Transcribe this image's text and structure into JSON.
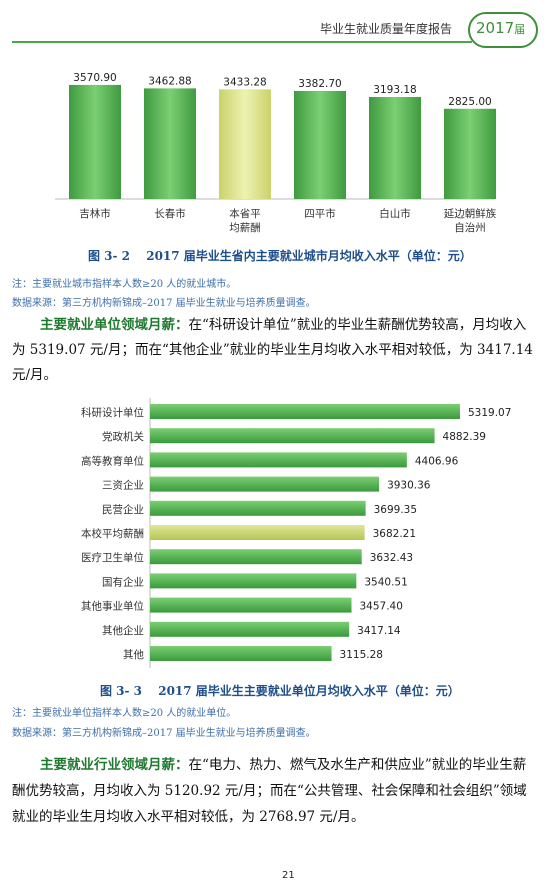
{
  "header": {
    "title": "毕业生就业质量年度报告",
    "year": "2017",
    "suffix": "届"
  },
  "chart1": {
    "caption": "图 3- 2 　2017 届毕业生省内主要就业城市月均收入水平（单位：元）",
    "note": "注：主要就业城市指样本人数≥20 人的就业城市。",
    "source": "数据来源：第三方机构新锦成–2017 届毕业生就业与培养质量调查。"
  },
  "para1": {
    "lead": "主要就业单位领域月薪：",
    "text": "在“科研设计单位”就业的毕业生薪酬优势较高，月均收入为 5319.07 元/月；而在“其他企业”就业的毕业生月均收入水平相对较低，为 3417.14 元/月。"
  },
  "chart2": {
    "caption": "图 3- 3 　2017 届毕业生主要就业单位月均收入水平（单位：元）",
    "note": "注：主要就业单位指样本人数≥20 人的就业单位。",
    "source": "数据来源：第三方机构新锦成–2017 届毕业生就业与培养质量调查。"
  },
  "para2": {
    "lead": "主要就业行业领域月薪：",
    "text": "在“电力、热力、燃气及水生产和供应业”就业的毕业生薪酬优势较高，月均收入为 5120.92 元/月；而在“公共管理、社会保障和社会组织”领域就业的毕业生月均收入水平相对较低，为 2768.97 元/月。"
  },
  "page_number": "21",
  "chart_data": [
    {
      "type": "bar",
      "orientation": "vertical",
      "categories": [
        "吉林市",
        "长春市",
        "本省平均薪酬",
        "四平市",
        "白山市",
        "延边朝鲜族自治州"
      ],
      "category_lines": [
        [
          "吉林市"
        ],
        [
          "长春市"
        ],
        [
          "本省平",
          "均薪酬"
        ],
        [
          "四平市"
        ],
        [
          "白山市"
        ],
        [
          "延边朝鲜族",
          "自治州"
        ]
      ],
      "values": [
        3570.9,
        3462.88,
        3433.28,
        3382.7,
        3193.18,
        2825.0
      ],
      "value_labels": [
        "3570.90",
        "3462.88",
        "3433.28",
        "3382.70",
        "3193.18",
        "2825.00"
      ],
      "highlight_index": 2,
      "colors": {
        "bar": "#58b35a",
        "highlight": "#d7e08a"
      }
    },
    {
      "type": "bar",
      "orientation": "horizontal",
      "categories": [
        "科研设计单位",
        "党政机关",
        "高等教育单位",
        "三资企业",
        "民营企业",
        "本校平均薪酬",
        "医疗卫生单位",
        "国有企业",
        "其他事业单位",
        "其他企业",
        "其他"
      ],
      "values": [
        5319.07,
        4882.39,
        4406.96,
        3930.36,
        3699.35,
        3682.21,
        3632.43,
        3540.51,
        3457.4,
        3417.14,
        3115.28
      ],
      "value_labels": [
        "5319.07",
        "4882.39",
        "4406.96",
        "3930.36",
        "3699.35",
        "3682.21",
        "3632.43",
        "3540.51",
        "3457.40",
        "3417.14",
        "3115.28"
      ],
      "highlight_index": 5,
      "colors": {
        "bar": "#58b35a",
        "highlight": "#c9d86a"
      }
    }
  ]
}
